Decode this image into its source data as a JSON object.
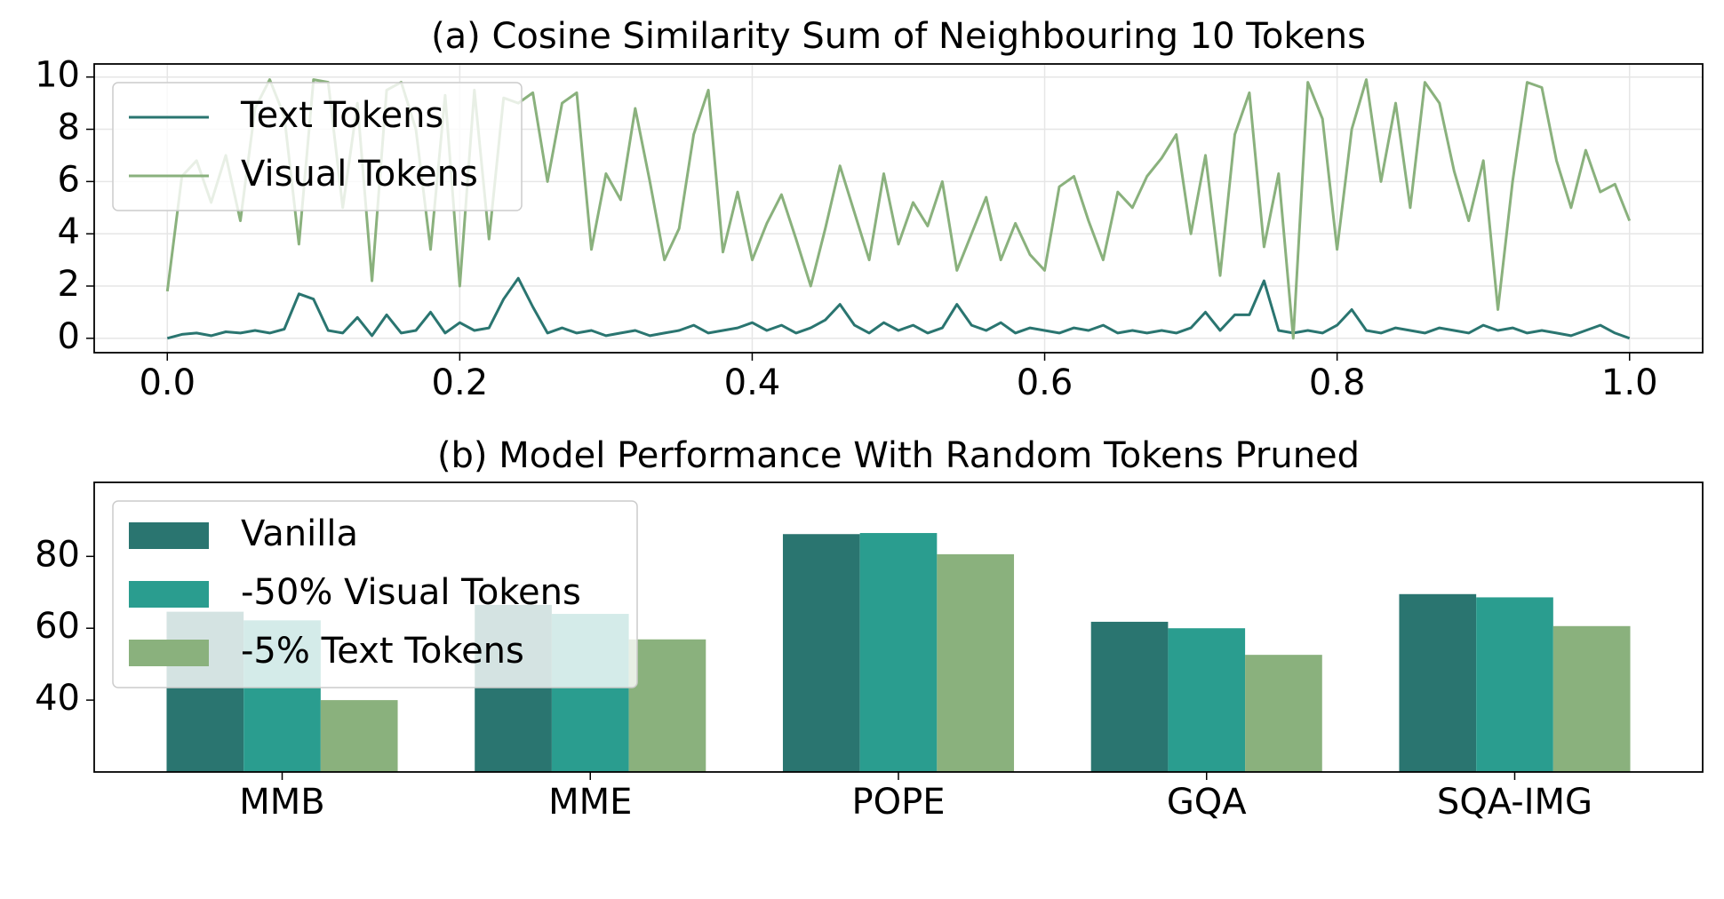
{
  "chart_data": [
    {
      "type": "line",
      "title": "(a) Cosine Similarity Sum of Neighbouring 10 Tokens",
      "x": [
        0.0,
        0.01,
        0.02,
        0.03,
        0.04,
        0.05,
        0.06,
        0.07,
        0.08,
        0.09,
        0.1,
        0.11,
        0.12,
        0.13,
        0.14,
        0.15,
        0.16,
        0.17,
        0.18,
        0.19,
        0.2,
        0.21,
        0.22,
        0.23,
        0.24,
        0.25,
        0.26,
        0.27,
        0.28,
        0.29,
        0.3,
        0.31,
        0.32,
        0.33,
        0.34,
        0.35,
        0.36,
        0.37,
        0.38,
        0.39,
        0.4,
        0.41,
        0.42,
        0.43,
        0.44,
        0.45,
        0.46,
        0.47,
        0.48,
        0.49,
        0.5,
        0.51,
        0.52,
        0.53,
        0.54,
        0.55,
        0.56,
        0.57,
        0.58,
        0.59,
        0.6,
        0.61,
        0.62,
        0.63,
        0.64,
        0.65,
        0.66,
        0.67,
        0.68,
        0.69,
        0.7,
        0.71,
        0.72,
        0.73,
        0.74,
        0.75,
        0.76,
        0.77,
        0.78,
        0.79,
        0.8,
        0.81,
        0.82,
        0.83,
        0.84,
        0.85,
        0.86,
        0.87,
        0.88,
        0.89,
        0.9,
        0.91,
        0.92,
        0.93,
        0.94,
        0.95,
        0.96,
        0.97,
        0.98,
        0.99,
        1.0
      ],
      "series": [
        {
          "name": "Text Tokens",
          "color": "#2a7570",
          "values": [
            0.0,
            0.15,
            0.2,
            0.1,
            0.25,
            0.2,
            0.3,
            0.2,
            0.35,
            1.7,
            1.5,
            0.3,
            0.2,
            0.8,
            0.1,
            0.9,
            0.2,
            0.3,
            1.0,
            0.2,
            0.6,
            0.3,
            0.4,
            1.5,
            2.3,
            1.2,
            0.2,
            0.4,
            0.2,
            0.3,
            0.1,
            0.2,
            0.3,
            0.1,
            0.2,
            0.3,
            0.5,
            0.2,
            0.3,
            0.4,
            0.6,
            0.3,
            0.5,
            0.2,
            0.4,
            0.7,
            1.3,
            0.5,
            0.2,
            0.6,
            0.3,
            0.5,
            0.2,
            0.4,
            1.3,
            0.5,
            0.3,
            0.6,
            0.2,
            0.4,
            0.3,
            0.2,
            0.4,
            0.3,
            0.5,
            0.2,
            0.3,
            0.2,
            0.3,
            0.2,
            0.4,
            1.0,
            0.3,
            0.9,
            0.9,
            2.2,
            0.3,
            0.2,
            0.3,
            0.2,
            0.5,
            1.1,
            0.3,
            0.2,
            0.4,
            0.3,
            0.2,
            0.4,
            0.3,
            0.2,
            0.5,
            0.3,
            0.4,
            0.2,
            0.3,
            0.2,
            0.1,
            0.3,
            0.5,
            0.2,
            0.0
          ]
        },
        {
          "name": "Visual Tokens",
          "color": "#8ab17d",
          "values": [
            1.8,
            6.2,
            6.8,
            5.2,
            7.0,
            4.5,
            8.8,
            9.9,
            8.5,
            3.6,
            9.9,
            9.8,
            5.0,
            9.0,
            2.2,
            9.5,
            9.8,
            8.0,
            3.4,
            9.3,
            2.0,
            9.5,
            3.8,
            9.2,
            9.0,
            9.4,
            6.0,
            9.0,
            9.4,
            3.4,
            6.3,
            5.3,
            8.8,
            6.0,
            3.0,
            4.2,
            7.8,
            9.5,
            3.3,
            5.6,
            3.0,
            4.4,
            5.5,
            3.8,
            2.0,
            4.2,
            6.6,
            4.8,
            3.0,
            6.3,
            3.6,
            5.2,
            4.3,
            6.0,
            2.6,
            4.0,
            5.4,
            3.0,
            4.4,
            3.2,
            2.6,
            5.8,
            6.2,
            4.5,
            3.0,
            5.6,
            5.0,
            6.2,
            6.9,
            7.8,
            4.0,
            7.0,
            2.4,
            7.8,
            9.4,
            3.5,
            6.3,
            0.0,
            9.8,
            8.4,
            3.4,
            8.0,
            9.9,
            6.0,
            9.0,
            5.0,
            9.8,
            9.0,
            6.4,
            4.5,
            6.8,
            1.1,
            6.0,
            9.8,
            9.6,
            6.8,
            5.0,
            7.2,
            5.6,
            5.9,
            4.5
          ]
        }
      ],
      "xlim": [
        -0.05,
        1.05
      ],
      "xticks": [
        {
          "value": 0,
          "label": "0.0"
        },
        0.2,
        0.4,
        0.6,
        0.8,
        {
          "value": 1,
          "label": "1.0"
        }
      ],
      "ylim": [
        -0.55,
        10.5
      ],
      "yticks": [
        0,
        2,
        4,
        6,
        8,
        10
      ],
      "grid": true,
      "legend": "upper-left"
    },
    {
      "type": "bar",
      "title": "(b) Model Performance With Random Tokens Pruned",
      "categories": [
        "MMB",
        "MME",
        "POPE",
        "GQA",
        "SQA-IMG"
      ],
      "series": [
        {
          "name": "Vanilla",
          "color": "#2a7570",
          "values": [
            64.6,
            66.5,
            86.2,
            61.8,
            69.5
          ]
        },
        {
          "name": "-50% Visual Tokens",
          "color": "#2a9d8f",
          "values": [
            62.2,
            64.0,
            86.5,
            60.0,
            68.6
          ]
        },
        {
          "name": "-5% Text Tokens",
          "color": "#8ab17d",
          "values": [
            40.0,
            56.9,
            80.6,
            52.6,
            60.6
          ]
        }
      ],
      "ylim": [
        20,
        100.6
      ],
      "yticks": [
        40,
        60,
        80
      ],
      "grid": false,
      "legend": "upper-left"
    }
  ]
}
